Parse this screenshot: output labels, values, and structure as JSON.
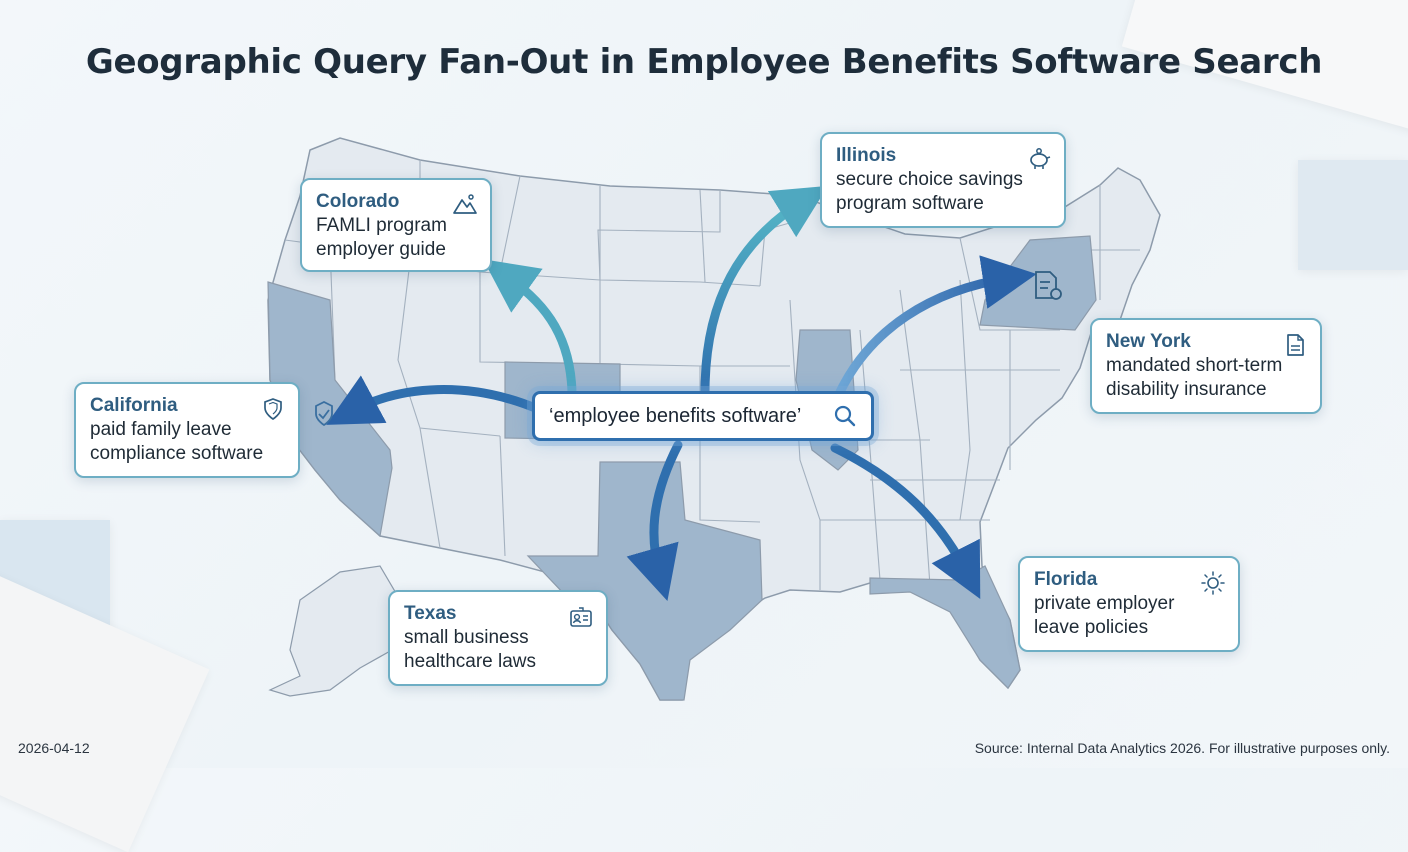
{
  "title": "Geographic Query Fan-Out in Employee Benefits Software Search",
  "search_query": "‘employee benefits software’",
  "callouts": {
    "colorado": {
      "state": "Colorado",
      "query": [
        "FAMLI program",
        "employer guide"
      ],
      "icon": "mountain-icon"
    },
    "illinois": {
      "state": "Illinois",
      "query": [
        "secure choice savings",
        "program software"
      ],
      "icon": "piggy-bank-icon"
    },
    "california": {
      "state": "California",
      "query": [
        "paid family leave",
        "compliance software"
      ],
      "icon": "shield-icon"
    },
    "new_york": {
      "state": "New York",
      "query": [
        "mandated short-term",
        "disability insurance"
      ],
      "icon": "document-icon"
    },
    "texas": {
      "state": "Texas",
      "query": [
        "small business",
        "healthcare laws"
      ],
      "icon": "id-card-icon"
    },
    "florida": {
      "state": "Florida",
      "query": [
        "private employer",
        "leave policies"
      ],
      "icon": "sun-icon"
    }
  },
  "footer": {
    "date": "2026-04-12",
    "source": "Source: Internal Data Analytics 2026. For illustrative purposes only."
  },
  "colors": {
    "highlight_state": "#9fb6cc",
    "map_fill": "#e4eaf0",
    "border_lines": "#8d9bab",
    "arrow_dark": "#2f6fae",
    "arrow_teal": "#4fa8c0",
    "callout_border": "#6eaec4"
  }
}
